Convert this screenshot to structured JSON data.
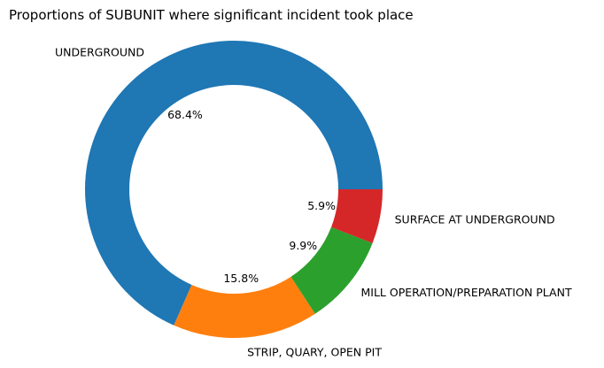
{
  "chart_data": {
    "type": "pie",
    "variant": "donut",
    "title": "Proportions of SUBUNIT where significant incident took place",
    "start_angle_deg": 0,
    "direction": "counterclockwise",
    "legend": "none",
    "slices": [
      {
        "label": "UNDERGROUND",
        "value": 68.4,
        "pct_label": "68.4%",
        "color": "#1f77b4"
      },
      {
        "label": "STRIP, QUARY, OPEN PIT",
        "value": 15.8,
        "pct_label": "15.8%",
        "color": "#ff7f0e"
      },
      {
        "label": "MILL OPERATION/PREPARATION PLANT",
        "value": 9.9,
        "pct_label": "9.9%",
        "color": "#2ca02c"
      },
      {
        "label": "SURFACE AT UNDERGROUND",
        "value": 5.9,
        "pct_label": "5.9%",
        "color": "#d62728"
      }
    ]
  }
}
